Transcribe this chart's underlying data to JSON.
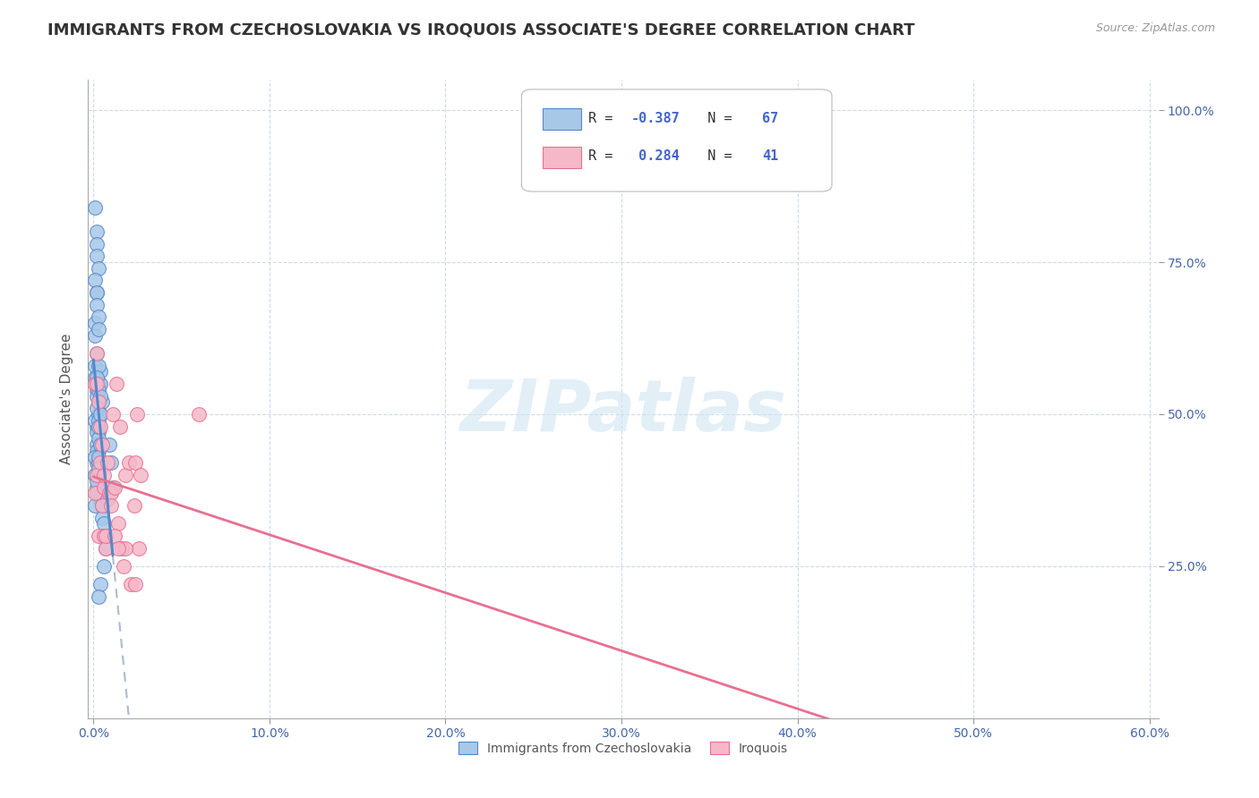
{
  "title": "IMMIGRANTS FROM CZECHOSLOVAKIA VS IROQUOIS ASSOCIATE'S DEGREE CORRELATION CHART",
  "source": "Source: ZipAtlas.com",
  "ylabel": "Associate's Degree",
  "legend_label1": "Immigrants from Czechoslovakia",
  "legend_label2": "Iroquois",
  "R1": "-0.387",
  "N1": "67",
  "R2": "0.284",
  "N2": "41",
  "color_blue": "#a8c8e8",
  "color_pink": "#f5b8c8",
  "line_blue": "#5588cc",
  "line_pink": "#e87090",
  "line_dashed_color": "#aabbcc",
  "watermark": "ZIPatlas",
  "xlim_max": 0.6,
  "ylim_max": 1.05,
  "blue_scatter_x": [
    0.001,
    0.002,
    0.001,
    0.003,
    0.004,
    0.002,
    0.001,
    0.003,
    0.002,
    0.004,
    0.002,
    0.003,
    0.001,
    0.002,
    0.003,
    0.004,
    0.005,
    0.003,
    0.002,
    0.001,
    0.001,
    0.002,
    0.003,
    0.002,
    0.003,
    0.004,
    0.002,
    0.003,
    0.002,
    0.003,
    0.004,
    0.003,
    0.002,
    0.001,
    0.003,
    0.004,
    0.003,
    0.002,
    0.004,
    0.001,
    0.001,
    0.002,
    0.002,
    0.002,
    0.003,
    0.001,
    0.002,
    0.002,
    0.003,
    0.003,
    0.004,
    0.003,
    0.003,
    0.002,
    0.002,
    0.005,
    0.005,
    0.006,
    0.006,
    0.007,
    0.009,
    0.01,
    0.011,
    0.008,
    0.006,
    0.004,
    0.003
  ],
  "blue_scatter_y": [
    0.63,
    0.7,
    0.58,
    0.55,
    0.57,
    0.54,
    0.56,
    0.52,
    0.53,
    0.5,
    0.48,
    0.47,
    0.49,
    0.45,
    0.44,
    0.55,
    0.52,
    0.5,
    0.42,
    0.4,
    0.65,
    0.6,
    0.58,
    0.56,
    0.54,
    0.53,
    0.51,
    0.49,
    0.47,
    0.46,
    0.5,
    0.48,
    0.44,
    0.43,
    0.42,
    0.41,
    0.4,
    0.38,
    0.36,
    0.35,
    0.84,
    0.8,
    0.78,
    0.76,
    0.74,
    0.72,
    0.7,
    0.68,
    0.66,
    0.64,
    0.45,
    0.43,
    0.41,
    0.39,
    0.37,
    0.35,
    0.33,
    0.32,
    0.3,
    0.28,
    0.45,
    0.42,
    0.38,
    0.36,
    0.25,
    0.22,
    0.2
  ],
  "pink_scatter_x": [
    0.001,
    0.002,
    0.003,
    0.004,
    0.005,
    0.006,
    0.007,
    0.009,
    0.011,
    0.013,
    0.015,
    0.018,
    0.02,
    0.023,
    0.026,
    0.06,
    0.001,
    0.003,
    0.004,
    0.005,
    0.006,
    0.007,
    0.008,
    0.01,
    0.012,
    0.014,
    0.016,
    0.018,
    0.021,
    0.024,
    0.027,
    0.002,
    0.002,
    0.006,
    0.007,
    0.01,
    0.012,
    0.014,
    0.017,
    0.024,
    0.025
  ],
  "pink_scatter_y": [
    0.37,
    0.4,
    0.3,
    0.42,
    0.35,
    0.38,
    0.3,
    0.37,
    0.5,
    0.55,
    0.48,
    0.4,
    0.42,
    0.35,
    0.28,
    0.5,
    0.55,
    0.52,
    0.48,
    0.45,
    0.3,
    0.28,
    0.42,
    0.37,
    0.38,
    0.32,
    0.28,
    0.28,
    0.22,
    0.42,
    0.4,
    0.6,
    0.55,
    0.4,
    0.3,
    0.35,
    0.3,
    0.28,
    0.25,
    0.22,
    0.5
  ],
  "xtick_positions": [
    0.0,
    0.1,
    0.2,
    0.3,
    0.4,
    0.5,
    0.6
  ],
  "ytick_positions": [
    0.25,
    0.5,
    0.75,
    1.0
  ],
  "blue_line_x_start": 0.0,
  "blue_line_x_solid_end": 0.011,
  "blue_line_x_dashed_end": 0.6,
  "pink_line_x_start": 0.0,
  "pink_line_x_end": 0.6
}
